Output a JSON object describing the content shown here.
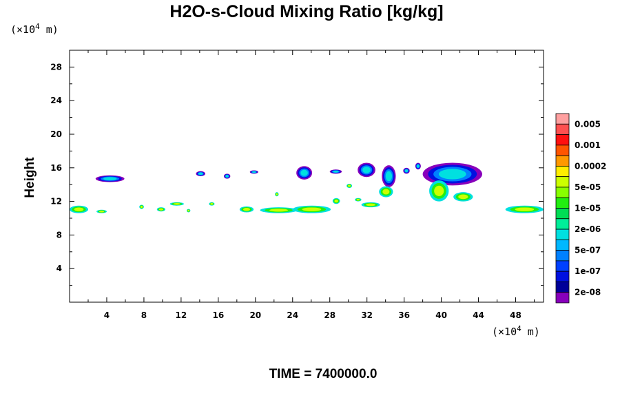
{
  "chart_data": {
    "type": "heatmap",
    "title": "H2O-s-Cloud Mixing Ratio [kg/kg]",
    "ylabel": "Height",
    "x_unit": {
      "prefix": "(×10",
      "exp": "4",
      "suffix": " m)"
    },
    "y_unit": {
      "prefix": "(×10",
      "exp": "4",
      "suffix": " m)"
    },
    "xlim": [
      0,
      51
    ],
    "ylim": [
      0,
      30
    ],
    "x_ticks": [
      "4",
      "8",
      "12",
      "16",
      "20",
      "24",
      "28",
      "32",
      "36",
      "40",
      "44",
      "48"
    ],
    "y_ticks": [
      "4",
      "8",
      "12",
      "16",
      "20",
      "24",
      "28"
    ],
    "colorbar": {
      "colors": [
        "#ffa0a0",
        "#ff5050",
        "#ff1010",
        "#ff5500",
        "#ff9900",
        "#ffee00",
        "#ccff00",
        "#88ff00",
        "#22ee11",
        "#00dd55",
        "#00ee99",
        "#00e0e0",
        "#00b8ff",
        "#0080ff",
        "#0040ff",
        "#0010e0",
        "#000099",
        "#8800bb"
      ],
      "labels": [
        "0.005",
        "0.001",
        "0.0002",
        "5e-05",
        "1e-05",
        "2e-06",
        "5e-07",
        "1e-07",
        "2e-08"
      ]
    },
    "cloud_features": [
      {
        "x": [
          2.8,
          5.9
        ],
        "y": [
          14.3,
          15.1
        ],
        "scheme": "cold"
      },
      {
        "x": [
          13.6,
          14.6
        ],
        "y": [
          15.0,
          15.6
        ],
        "scheme": "cold"
      },
      {
        "x": [
          16.6,
          17.3
        ],
        "y": [
          14.7,
          15.3
        ],
        "scheme": "cold"
      },
      {
        "x": [
          19.4,
          20.3
        ],
        "y": [
          15.3,
          15.7
        ],
        "scheme": "cold"
      },
      {
        "x": [
          24.4,
          26.1
        ],
        "y": [
          14.6,
          16.2
        ],
        "scheme": "cold"
      },
      {
        "x": [
          28.0,
          29.3
        ],
        "y": [
          15.3,
          15.8
        ],
        "scheme": "cold"
      },
      {
        "x": [
          31.0,
          32.9
        ],
        "y": [
          14.9,
          16.6
        ],
        "scheme": "cold"
      },
      {
        "x": [
          33.6,
          35.1
        ],
        "y": [
          13.7,
          16.3
        ],
        "scheme": "cold"
      },
      {
        "x": [
          35.9,
          36.6
        ],
        "y": [
          15.3,
          16.0
        ],
        "scheme": "cold"
      },
      {
        "x": [
          37.2,
          37.8
        ],
        "y": [
          15.8,
          16.6
        ],
        "scheme": "cold"
      },
      {
        "x": [
          38.0,
          44.4
        ],
        "y": [
          13.9,
          16.6
        ],
        "scheme": "cold"
      },
      {
        "x": [
          33.3,
          34.8
        ],
        "y": [
          12.5,
          13.8
        ],
        "scheme": "warm"
      },
      {
        "x": [
          38.7,
          40.8
        ],
        "y": [
          12.0,
          14.5
        ],
        "scheme": "warm"
      },
      {
        "x": [
          41.3,
          43.4
        ],
        "y": [
          12.0,
          13.1
        ],
        "scheme": "warm"
      },
      {
        "x": [
          29.8,
          30.4
        ],
        "y": [
          13.6,
          14.1
        ],
        "scheme": "warm"
      },
      {
        "x": [
          0.0,
          2.0
        ],
        "y": [
          10.6,
          11.5
        ],
        "scheme": "warm"
      },
      {
        "x": [
          2.9,
          4.0
        ],
        "y": [
          10.6,
          11.0
        ],
        "scheme": "warm"
      },
      {
        "x": [
          7.5,
          8.0
        ],
        "y": [
          11.1,
          11.6
        ],
        "scheme": "warm"
      },
      {
        "x": [
          9.4,
          10.3
        ],
        "y": [
          10.8,
          11.3
        ],
        "scheme": "warm"
      },
      {
        "x": [
          10.8,
          12.3
        ],
        "y": [
          11.5,
          11.9
        ],
        "scheme": "warm"
      },
      {
        "x": [
          12.6,
          13.0
        ],
        "y": [
          10.7,
          11.1
        ],
        "scheme": "warm"
      },
      {
        "x": [
          15.0,
          15.6
        ],
        "y": [
          11.5,
          11.9
        ],
        "scheme": "warm"
      },
      {
        "x": [
          18.3,
          19.8
        ],
        "y": [
          10.7,
          11.4
        ],
        "scheme": "warm"
      },
      {
        "x": [
          20.5,
          24.5
        ],
        "y": [
          10.6,
          11.3
        ],
        "scheme": "warm"
      },
      {
        "x": [
          24.0,
          28.1
        ],
        "y": [
          10.6,
          11.5
        ],
        "scheme": "warm"
      },
      {
        "x": [
          28.3,
          29.1
        ],
        "y": [
          11.7,
          12.4
        ],
        "scheme": "warm"
      },
      {
        "x": [
          30.7,
          31.4
        ],
        "y": [
          12.0,
          12.4
        ],
        "scheme": "warm"
      },
      {
        "x": [
          31.4,
          33.4
        ],
        "y": [
          11.3,
          11.9
        ],
        "scheme": "warm"
      },
      {
        "x": [
          22.1,
          22.5
        ],
        "y": [
          12.6,
          13.1
        ],
        "scheme": "warm"
      },
      {
        "x": [
          46.9,
          51.0
        ],
        "y": [
          10.6,
          11.5
        ],
        "scheme": "warm"
      }
    ]
  },
  "time_label": "TIME = 7400000.0"
}
